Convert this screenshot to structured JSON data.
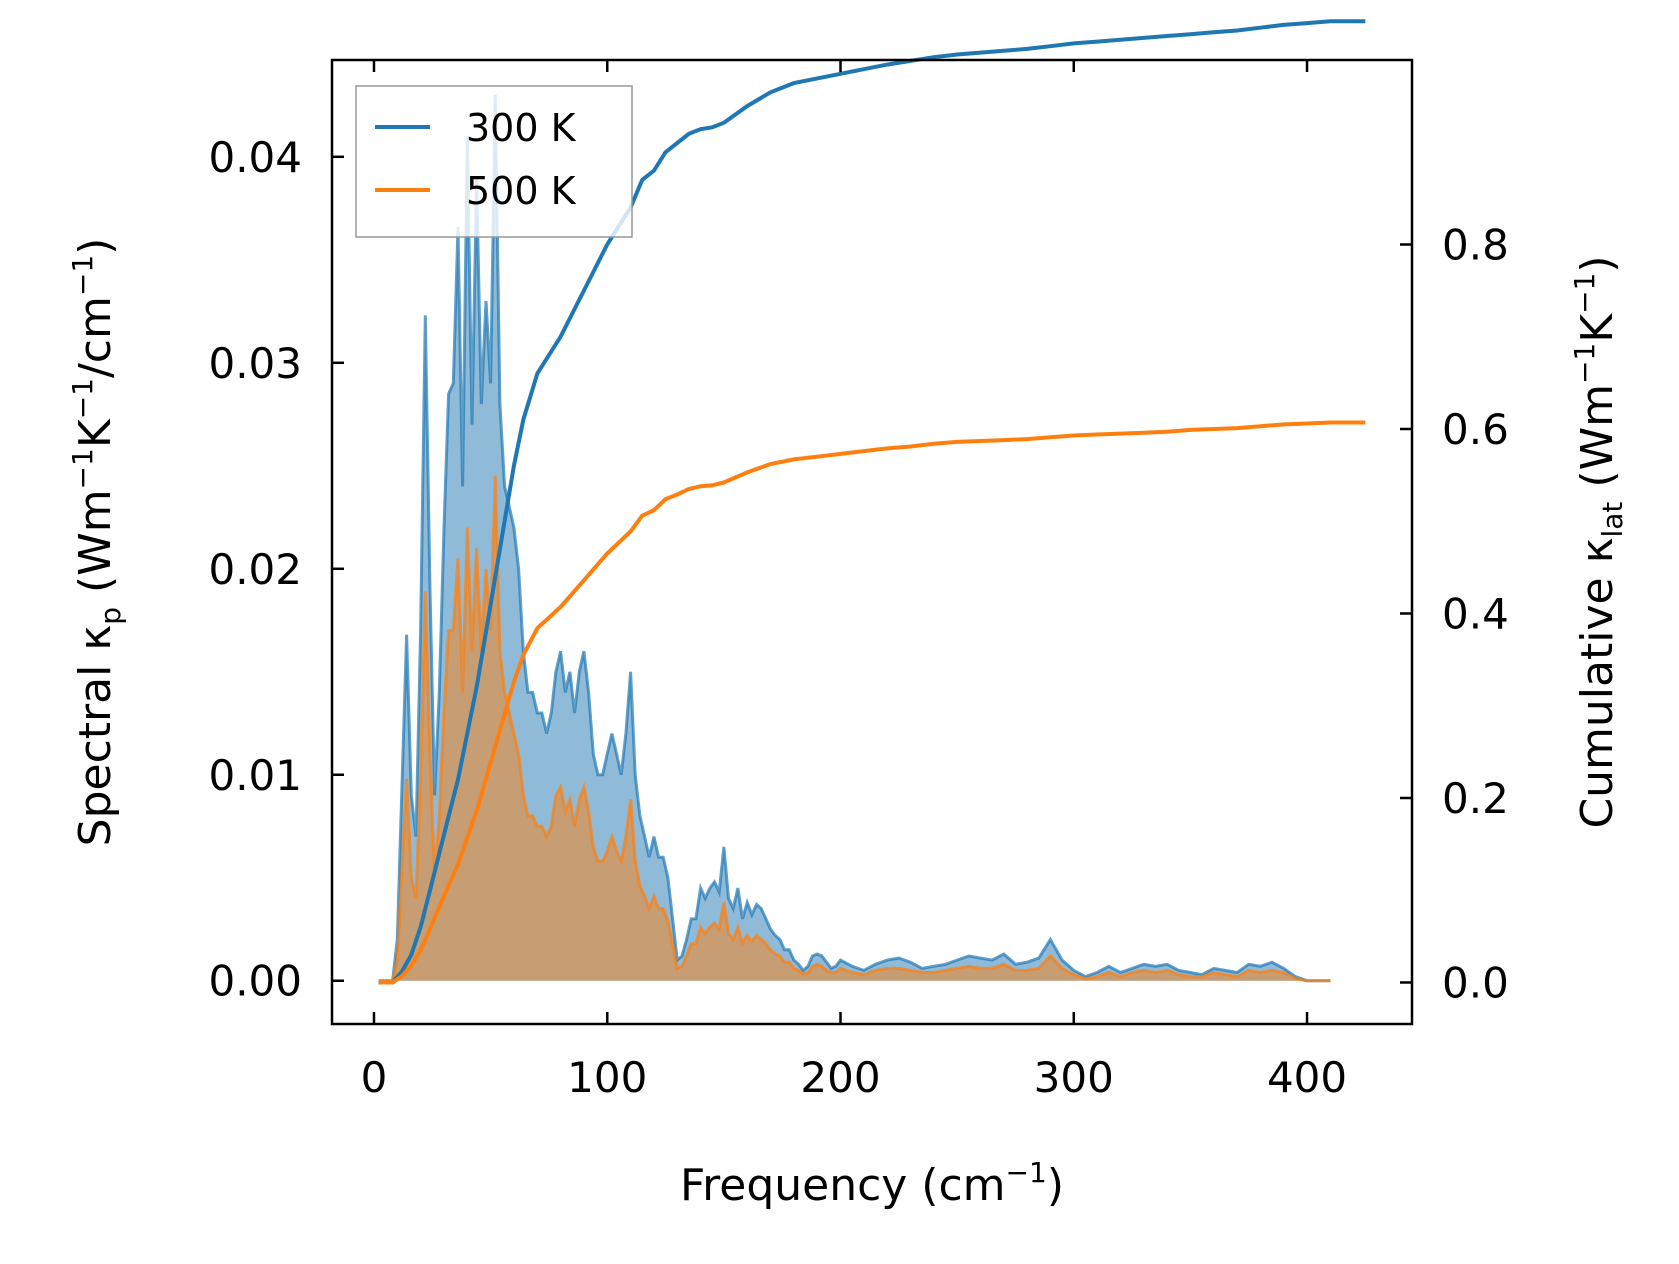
{
  "chart_data": {
    "type": "area",
    "xlabel_main": "Frequency (cm",
    "xlabel_sup": "−1",
    "xlabel_end": ")",
    "ylabel_left_parts": [
      "Spectral κ",
      "p",
      " (Wm",
      "−1",
      "K",
      "−1",
      "/cm",
      "−1",
      ")"
    ],
    "ylabel_right_parts": [
      "Cumulative κ",
      "lat",
      " (Wm",
      "−1",
      "K",
      "−1",
      ")"
    ],
    "xlim": [
      -18,
      445
    ],
    "ylim_left": [
      -0.0021,
      0.0447
    ],
    "ylim_right": [
      -0.045,
      1.0
    ],
    "x_ticks": [
      0,
      100,
      200,
      300,
      400
    ],
    "x_tick_labels": [
      "0",
      "100",
      "200",
      "300",
      "400"
    ],
    "y_left_ticks": [
      0.0,
      0.01,
      0.02,
      0.03,
      0.04
    ],
    "y_left_tick_labels": [
      "0.00",
      "0.01",
      "0.02",
      "0.03",
      "0.04"
    ],
    "y_right_ticks": [
      0.0,
      0.2,
      0.4,
      0.6,
      0.8
    ],
    "y_right_tick_labels": [
      "0.0",
      "0.2",
      "0.4",
      "0.6",
      "0.8"
    ],
    "legend": {
      "position": "upper-left",
      "entries": [
        "300 K",
        "500 K"
      ]
    },
    "series": [
      {
        "name": "300 K",
        "color": "#1f77b4",
        "spectral_x": [
          2,
          8,
          10,
          14,
          16,
          18,
          20,
          22,
          24,
          26,
          28,
          30,
          32,
          34,
          36,
          38,
          40,
          42,
          44,
          46,
          48,
          50,
          52,
          54,
          56,
          58,
          60,
          62,
          64,
          66,
          68,
          70,
          72,
          74,
          76,
          78,
          80,
          82,
          84,
          86,
          88,
          90,
          92,
          94,
          96,
          98,
          100,
          102,
          104,
          106,
          108,
          110,
          112,
          114,
          116,
          118,
          120,
          122,
          124,
          126,
          128,
          130,
          132,
          134,
          136,
          138,
          140,
          142,
          144,
          146,
          148,
          150,
          152,
          154,
          156,
          158,
          160,
          162,
          164,
          166,
          168,
          170,
          172,
          174,
          176,
          178,
          180,
          182,
          184,
          186,
          188,
          190,
          192,
          194,
          196,
          198,
          200,
          205,
          210,
          215,
          220,
          225,
          230,
          235,
          240,
          245,
          250,
          255,
          260,
          265,
          270,
          275,
          280,
          285,
          290,
          295,
          298,
          300,
          305,
          310,
          315,
          320,
          325,
          330,
          335,
          340,
          345,
          350,
          355,
          360,
          365,
          370,
          375,
          380,
          385,
          390,
          395,
          400,
          405,
          410,
          425
        ],
        "spectral_y": [
          0.0,
          0.0,
          0.002,
          0.0168,
          0.009,
          0.007,
          0.017,
          0.0323,
          0.019,
          0.009,
          0.014,
          0.022,
          0.0285,
          0.029,
          0.0366,
          0.024,
          0.041,
          0.027,
          0.039,
          0.028,
          0.033,
          0.029,
          0.043,
          0.028,
          0.024,
          0.023,
          0.022,
          0.02,
          0.016,
          0.014,
          0.014,
          0.013,
          0.013,
          0.012,
          0.013,
          0.015,
          0.016,
          0.014,
          0.015,
          0.013,
          0.015,
          0.016,
          0.014,
          0.011,
          0.01,
          0.01,
          0.011,
          0.012,
          0.011,
          0.01,
          0.012,
          0.015,
          0.01,
          0.008,
          0.007,
          0.006,
          0.007,
          0.006,
          0.006,
          0.005,
          0.003,
          0.001,
          0.0012,
          0.002,
          0.003,
          0.003,
          0.0045,
          0.004,
          0.0045,
          0.0048,
          0.0043,
          0.0065,
          0.004,
          0.0035,
          0.0045,
          0.003,
          0.0038,
          0.0032,
          0.0037,
          0.0035,
          0.003,
          0.0025,
          0.0022,
          0.002,
          0.0015,
          0.0015,
          0.001,
          0.0008,
          0.0005,
          0.0007,
          0.0012,
          0.0013,
          0.0012,
          0.0009,
          0.0006,
          0.0007,
          0.001,
          0.0007,
          0.0005,
          0.0008,
          0.001,
          0.0011,
          0.0009,
          0.0006,
          0.0007,
          0.0008,
          0.001,
          0.0012,
          0.0011,
          0.001,
          0.0013,
          0.0008,
          0.0009,
          0.0011,
          0.002,
          0.001,
          0.0007,
          0.0005,
          0.0002,
          0.0004,
          0.0007,
          0.0004,
          0.0006,
          0.0008,
          0.0007,
          0.0008,
          0.0005,
          0.0004,
          0.0003,
          0.0006,
          0.0005,
          0.0004,
          0.0008,
          0.0007,
          0.0009,
          0.0006,
          0.0002,
          0.0,
          0.0,
          0.0
        ],
        "cumulative_x": [
          2,
          8,
          12,
          16,
          20,
          24,
          28,
          32,
          36,
          40,
          44,
          48,
          52,
          56,
          60,
          64,
          70,
          80,
          90,
          100,
          110,
          115,
          120,
          125,
          130,
          135,
          140,
          145,
          150,
          160,
          170,
          180,
          190,
          200,
          210,
          220,
          230,
          240,
          250,
          260,
          270,
          280,
          290,
          300,
          310,
          320,
          330,
          340,
          350,
          360,
          370,
          380,
          390,
          400,
          410,
          425
        ],
        "cumulative_y": [
          0.0,
          0.0,
          0.012,
          0.03,
          0.06,
          0.1,
          0.14,
          0.18,
          0.22,
          0.27,
          0.32,
          0.38,
          0.44,
          0.5,
          0.56,
          0.61,
          0.66,
          0.7,
          0.75,
          0.8,
          0.84,
          0.87,
          0.88,
          0.9,
          0.91,
          0.92,
          0.925,
          0.927,
          0.932,
          0.95,
          0.965,
          0.975,
          0.98,
          0.985,
          0.99,
          0.995,
          0.999,
          1.003,
          1.006,
          1.008,
          1.01,
          1.012,
          1.015,
          1.018,
          1.02,
          1.022,
          1.024,
          1.026,
          1.028,
          1.03,
          1.032,
          1.035,
          1.038,
          1.04,
          1.042,
          1.042
        ]
      },
      {
        "name": "500 K",
        "color": "#ff7f0e",
        "spectral_x": [
          2,
          8,
          10,
          14,
          16,
          18,
          20,
          22,
          24,
          26,
          28,
          30,
          32,
          34,
          36,
          38,
          40,
          42,
          44,
          46,
          48,
          50,
          52,
          54,
          56,
          58,
          60,
          62,
          64,
          66,
          68,
          70,
          72,
          74,
          76,
          78,
          80,
          82,
          84,
          86,
          88,
          90,
          92,
          94,
          96,
          98,
          100,
          102,
          104,
          106,
          108,
          110,
          112,
          114,
          116,
          118,
          120,
          122,
          124,
          126,
          128,
          130,
          132,
          134,
          136,
          138,
          140,
          142,
          144,
          146,
          148,
          150,
          152,
          154,
          156,
          158,
          160,
          162,
          164,
          166,
          168,
          170,
          172,
          174,
          176,
          178,
          180,
          182,
          184,
          186,
          188,
          190,
          192,
          194,
          196,
          198,
          200,
          205,
          210,
          215,
          220,
          225,
          230,
          235,
          240,
          245,
          250,
          255,
          260,
          265,
          270,
          275,
          280,
          285,
          290,
          295,
          298,
          300,
          305,
          310,
          315,
          320,
          325,
          330,
          335,
          340,
          345,
          350,
          355,
          360,
          365,
          370,
          375,
          380,
          385,
          390,
          395,
          400,
          405,
          410,
          425
        ],
        "spectral_y": [
          0.0,
          0.0,
          0.001,
          0.0098,
          0.005,
          0.004,
          0.01,
          0.0189,
          0.011,
          0.005,
          0.008,
          0.013,
          0.017,
          0.017,
          0.0205,
          0.014,
          0.022,
          0.016,
          0.021,
          0.016,
          0.02,
          0.017,
          0.0245,
          0.016,
          0.014,
          0.013,
          0.012,
          0.011,
          0.009,
          0.008,
          0.008,
          0.0075,
          0.0075,
          0.007,
          0.0075,
          0.009,
          0.0094,
          0.0082,
          0.0088,
          0.0075,
          0.0088,
          0.0094,
          0.0082,
          0.0065,
          0.0058,
          0.0058,
          0.0063,
          0.007,
          0.0063,
          0.0058,
          0.007,
          0.0088,
          0.0058,
          0.0046,
          0.0041,
          0.0035,
          0.0041,
          0.0035,
          0.0035,
          0.0029,
          0.0018,
          0.0006,
          0.0007,
          0.0012,
          0.0018,
          0.0018,
          0.0026,
          0.0023,
          0.0026,
          0.0028,
          0.0025,
          0.0038,
          0.0023,
          0.002,
          0.0026,
          0.0018,
          0.0022,
          0.0019,
          0.0022,
          0.002,
          0.0018,
          0.0015,
          0.0013,
          0.0012,
          0.0009,
          0.0009,
          0.0006,
          0.0005,
          0.0003,
          0.0004,
          0.0007,
          0.0008,
          0.0007,
          0.0005,
          0.0004,
          0.0004,
          0.0006,
          0.0004,
          0.0003,
          0.0005,
          0.0006,
          0.0006,
          0.0005,
          0.0004,
          0.0004,
          0.0005,
          0.0006,
          0.0007,
          0.0006,
          0.0006,
          0.0008,
          0.0005,
          0.0005,
          0.0006,
          0.0012,
          0.0006,
          0.0004,
          0.0003,
          0.0001,
          0.0002,
          0.0004,
          0.0002,
          0.0004,
          0.0005,
          0.0004,
          0.0005,
          0.0003,
          0.0002,
          0.0002,
          0.0004,
          0.0003,
          0.0002,
          0.0005,
          0.0004,
          0.0005,
          0.0004,
          0.0001,
          0.0,
          0.0,
          0.0
        ],
        "cumulative_x": [
          2,
          8,
          12,
          16,
          20,
          24,
          28,
          32,
          36,
          40,
          44,
          48,
          52,
          56,
          60,
          64,
          70,
          80,
          90,
          100,
          110,
          115,
          120,
          125,
          130,
          135,
          140,
          145,
          150,
          160,
          170,
          180,
          190,
          200,
          210,
          220,
          230,
          240,
          250,
          260,
          270,
          280,
          290,
          300,
          310,
          320,
          330,
          340,
          350,
          360,
          370,
          380,
          390,
          400,
          410,
          425
        ],
        "cumulative_y": [
          0.0,
          0.0,
          0.007,
          0.018,
          0.035,
          0.058,
          0.082,
          0.105,
          0.128,
          0.157,
          0.186,
          0.221,
          0.256,
          0.291,
          0.326,
          0.355,
          0.384,
          0.407,
          0.436,
          0.465,
          0.489,
          0.506,
          0.512,
          0.524,
          0.529,
          0.535,
          0.538,
          0.539,
          0.542,
          0.553,
          0.562,
          0.567,
          0.57,
          0.573,
          0.576,
          0.579,
          0.581,
          0.584,
          0.586,
          0.587,
          0.588,
          0.589,
          0.591,
          0.593,
          0.594,
          0.595,
          0.596,
          0.597,
          0.599,
          0.6,
          0.601,
          0.603,
          0.605,
          0.606,
          0.607,
          0.607
        ]
      }
    ]
  }
}
